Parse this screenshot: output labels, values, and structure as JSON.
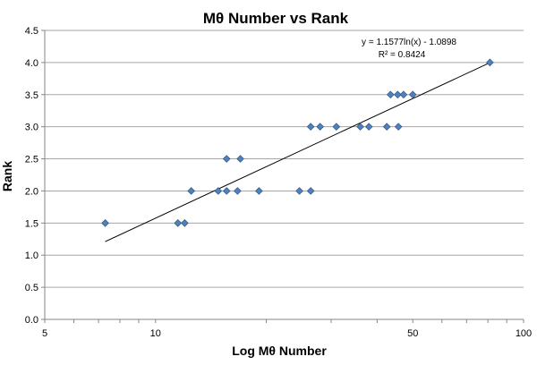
{
  "chart_data": {
    "type": "scatter",
    "title": "Mθ Number vs Rank",
    "xlabel": "Log Mθ Number",
    "ylabel": "Rank",
    "x_scale": "log",
    "xlim": [
      5,
      100
    ],
    "ylim": [
      0.0,
      4.5
    ],
    "x_ticks": [
      5,
      10,
      50,
      100
    ],
    "x_tick_labels": [
      "5",
      "10",
      "50",
      "100"
    ],
    "y_ticks": [
      0.0,
      0.5,
      1.0,
      1.5,
      2.0,
      2.5,
      3.0,
      3.5,
      4.0,
      4.5
    ],
    "y_tick_labels": [
      "0.0",
      "0.5",
      "1.0",
      "1.5",
      "2.0",
      "2.5",
      "3.0",
      "3.5",
      "4.0",
      "4.5"
    ],
    "grid": "horizontal",
    "legend": "none",
    "series": [
      {
        "marker": "diamond",
        "color": "#4f81bd",
        "points": [
          {
            "x": 7.3,
            "y": 1.5
          },
          {
            "x": 11.5,
            "y": 1.5
          },
          {
            "x": 12.0,
            "y": 1.5
          },
          {
            "x": 12.5,
            "y": 2.0
          },
          {
            "x": 14.8,
            "y": 2.0
          },
          {
            "x": 15.6,
            "y": 2.0
          },
          {
            "x": 15.6,
            "y": 2.5
          },
          {
            "x": 16.7,
            "y": 2.0
          },
          {
            "x": 17.0,
            "y": 2.5
          },
          {
            "x": 19.1,
            "y": 2.0
          },
          {
            "x": 24.6,
            "y": 2.0
          },
          {
            "x": 26.4,
            "y": 2.0
          },
          {
            "x": 26.4,
            "y": 3.0
          },
          {
            "x": 28.0,
            "y": 3.0
          },
          {
            "x": 31.0,
            "y": 3.0
          },
          {
            "x": 36.0,
            "y": 3.0
          },
          {
            "x": 38.0,
            "y": 3.0
          },
          {
            "x": 42.5,
            "y": 3.0
          },
          {
            "x": 43.5,
            "y": 3.5
          },
          {
            "x": 45.5,
            "y": 3.5
          },
          {
            "x": 45.7,
            "y": 3.0
          },
          {
            "x": 47.2,
            "y": 3.5
          },
          {
            "x": 50.0,
            "y": 3.5
          },
          {
            "x": 81.0,
            "y": 4.0
          }
        ]
      }
    ],
    "trendline": {
      "type": "logarithmic",
      "a": 1.1577,
      "b": -1.0898,
      "x_range": [
        7.3,
        81.0
      ],
      "equation": "y = 1.1577ln(x) - 1.0898",
      "r2": "R² = 0.8424"
    }
  }
}
